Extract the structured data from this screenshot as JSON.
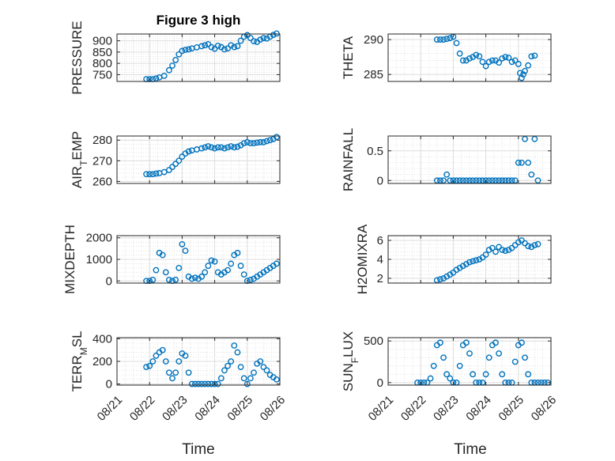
{
  "figure": {
    "title": "Figure 3 high",
    "xlabel": "Time",
    "marker_color": "#0072BD",
    "grid_color": "#dcdcdc",
    "axis_color": "#262626"
  },
  "chart_data": [
    {
      "id": "pressure",
      "type": "scatter",
      "title": "Figure 3 high",
      "ylabel": "PRESSURE",
      "ylim": [
        720,
        930
      ],
      "yticks": [
        750,
        800,
        850,
        900
      ],
      "yticklabels": [
        "750",
        "800",
        "850",
        "900"
      ],
      "xticklabels": [],
      "xlim": [
        0,
        5
      ],
      "x": [
        0.9,
        1.0,
        1.1,
        1.2,
        1.3,
        1.45,
        1.6,
        1.7,
        1.8,
        1.9,
        2.0,
        2.1,
        2.2,
        2.3,
        2.45,
        2.6,
        2.7,
        2.8,
        2.9,
        3.0,
        3.1,
        3.2,
        3.3,
        3.4,
        3.5,
        3.6,
        3.7,
        3.8,
        3.9,
        4.0,
        4.1,
        4.2,
        4.3,
        4.4,
        4.5,
        4.6,
        4.7,
        4.8,
        4.9
      ],
      "y": [
        730,
        730,
        730,
        733,
        738,
        745,
        770,
        790,
        815,
        840,
        855,
        860,
        862,
        866,
        871,
        876,
        880,
        885,
        872,
        865,
        878,
        872,
        862,
        866,
        880,
        872,
        876,
        900,
        918,
        925,
        912,
        898,
        895,
        905,
        912,
        910,
        918,
        926,
        932
      ]
    },
    {
      "id": "theta",
      "type": "scatter",
      "title": "",
      "ylabel": "THETA",
      "ylim": [
        284,
        290.8
      ],
      "yticks": [
        285,
        290
      ],
      "yticklabels": [
        "285",
        "290"
      ],
      "xticklabels": [],
      "xlim": [
        0,
        5
      ],
      "x": [
        1.5,
        1.6,
        1.7,
        1.8,
        1.9,
        2.0,
        2.1,
        2.2,
        2.3,
        2.4,
        2.5,
        2.6,
        2.7,
        2.8,
        2.9,
        3.0,
        3.1,
        3.2,
        3.3,
        3.4,
        3.5,
        3.6,
        3.7,
        3.8,
        3.9,
        4.0,
        4.05,
        4.1,
        4.15,
        4.2,
        4.3,
        4.4,
        4.5
      ],
      "y": [
        290,
        290,
        290,
        290.1,
        290.2,
        290.4,
        289.5,
        288,
        287,
        287,
        287.3,
        287.5,
        287.8,
        287.6,
        286.8,
        286.2,
        286.8,
        287,
        287,
        286.7,
        287.3,
        287.5,
        287.4,
        286.8,
        287,
        286.5,
        285.2,
        284.5,
        285,
        285.5,
        286.3,
        287.6,
        287.7
      ]
    },
    {
      "id": "air_temp",
      "type": "scatter",
      "title": "",
      "ylabel": "AIR_TEMP",
      "ylim": [
        259,
        282
      ],
      "yticks": [
        260,
        270,
        280
      ],
      "yticklabels": [
        "260",
        "270",
        "280"
      ],
      "xticklabels": [],
      "xlim": [
        0,
        5
      ],
      "x": [
        0.9,
        1.0,
        1.1,
        1.2,
        1.3,
        1.45,
        1.6,
        1.7,
        1.8,
        1.9,
        2.0,
        2.1,
        2.2,
        2.3,
        2.45,
        2.6,
        2.7,
        2.8,
        2.9,
        3.0,
        3.1,
        3.2,
        3.3,
        3.4,
        3.5,
        3.6,
        3.7,
        3.8,
        3.9,
        4.0,
        4.1,
        4.2,
        4.3,
        4.4,
        4.5,
        4.6,
        4.7,
        4.8,
        4.9
      ],
      "y": [
        263.5,
        263.5,
        263.5,
        263.8,
        264,
        264.5,
        265.5,
        267,
        268.5,
        270,
        272,
        273.5,
        274.5,
        275,
        275.5,
        276,
        276.5,
        277,
        276.5,
        276,
        276.5,
        276.5,
        276,
        276.5,
        277,
        276.5,
        276.8,
        277.5,
        278.5,
        279,
        278.5,
        278.5,
        278.8,
        279,
        279,
        279.5,
        280,
        280.5,
        281.5
      ]
    },
    {
      "id": "rainfall",
      "type": "scatter",
      "title": "",
      "ylabel": "RAINFALL",
      "ylim": [
        -0.05,
        0.75
      ],
      "yticks": [
        0,
        0.5
      ],
      "yticklabels": [
        "0",
        "0.5"
      ],
      "xticklabels": [],
      "xlim": [
        0,
        5
      ],
      "x": [
        1.5,
        1.6,
        1.7,
        1.8,
        1.9,
        2.0,
        2.1,
        2.2,
        2.3,
        2.4,
        2.5,
        2.6,
        2.7,
        2.8,
        2.9,
        3.0,
        3.1,
        3.2,
        3.3,
        3.4,
        3.5,
        3.6,
        3.7,
        3.8,
        3.9,
        4.0,
        4.1,
        4.2,
        4.3,
        4.4,
        4.5,
        4.6
      ],
      "y": [
        0,
        0,
        0,
        0.1,
        0,
        0,
        0,
        0,
        0,
        0,
        0,
        0,
        0,
        0,
        0,
        0,
        0,
        0,
        0,
        0,
        0,
        0,
        0,
        0,
        0,
        0.3,
        0.3,
        0.7,
        0.3,
        0.1,
        0.7,
        0
      ]
    },
    {
      "id": "mixdepth",
      "type": "scatter",
      "title": "",
      "ylabel": "MIXDEPTH",
      "ylim": [
        -100,
        2100
      ],
      "yticks": [
        0,
        1000,
        2000
      ],
      "yticklabels": [
        "0",
        "1000",
        "2000"
      ],
      "xticklabels": [],
      "xlim": [
        0,
        5
      ],
      "x": [
        0.9,
        1.0,
        1.1,
        1.2,
        1.3,
        1.4,
        1.5,
        1.6,
        1.7,
        1.8,
        1.9,
        2.0,
        2.1,
        2.2,
        2.3,
        2.4,
        2.5,
        2.6,
        2.7,
        2.8,
        2.9,
        3.0,
        3.1,
        3.2,
        3.3,
        3.4,
        3.5,
        3.6,
        3.7,
        3.8,
        3.9,
        4.0,
        4.1,
        4.2,
        4.3,
        4.4,
        4.5,
        4.6,
        4.7,
        4.8,
        4.9
      ],
      "y": [
        0,
        0,
        50,
        500,
        1300,
        1200,
        400,
        50,
        0,
        50,
        600,
        1700,
        1400,
        200,
        100,
        150,
        100,
        200,
        400,
        700,
        950,
        900,
        400,
        300,
        400,
        500,
        800,
        1200,
        1300,
        700,
        300,
        0,
        50,
        100,
        200,
        300,
        400,
        500,
        600,
        700,
        800
      ]
    },
    {
      "id": "h2omixra",
      "type": "scatter",
      "title": "",
      "ylabel": "H2OMIXRA",
      "ylim": [
        1.5,
        6.5
      ],
      "yticks": [
        2,
        4,
        6
      ],
      "yticklabels": [
        "2",
        "4",
        "6"
      ],
      "xticklabels": [],
      "xlim": [
        0,
        5
      ],
      "x": [
        1.5,
        1.6,
        1.7,
        1.8,
        1.9,
        2.0,
        2.1,
        2.2,
        2.3,
        2.4,
        2.5,
        2.6,
        2.7,
        2.8,
        2.9,
        3.0,
        3.1,
        3.2,
        3.3,
        3.4,
        3.5,
        3.6,
        3.7,
        3.8,
        3.9,
        4.0,
        4.1,
        4.2,
        4.3,
        4.4,
        4.5,
        4.6
      ],
      "y": [
        1.8,
        1.9,
        2.0,
        2.2,
        2.4,
        2.6,
        2.9,
        3.1,
        3.3,
        3.5,
        3.7,
        3.8,
        3.9,
        4.0,
        4.2,
        4.5,
        5.0,
        5.2,
        4.8,
        5.3,
        5.0,
        4.9,
        5.0,
        5.2,
        5.5,
        5.8,
        6.0,
        5.7,
        5.4,
        5.3,
        5.5,
        5.6
      ]
    },
    {
      "id": "terr_msl",
      "type": "scatter",
      "title": "",
      "ylabel": "TERR_MSL",
      "ylim": [
        -10,
        410
      ],
      "yticks": [
        0,
        200,
        400
      ],
      "yticklabels": [
        "0",
        "200",
        "400"
      ],
      "xticks": [
        0,
        1,
        2,
        3,
        4,
        5
      ],
      "xticklabels": [
        "08/21",
        "08/22",
        "08/23",
        "08/24",
        "08/25",
        "08/26"
      ],
      "xlim": [
        0,
        5
      ],
      "x": [
        0.9,
        1.0,
        1.1,
        1.2,
        1.3,
        1.4,
        1.5,
        1.6,
        1.7,
        1.8,
        1.9,
        2.0,
        2.1,
        2.2,
        2.3,
        2.4,
        2.5,
        2.6,
        2.7,
        2.8,
        2.9,
        3.0,
        3.1,
        3.2,
        3.3,
        3.4,
        3.5,
        3.6,
        3.7,
        3.8,
        3.9,
        4.0,
        4.1,
        4.2,
        4.3,
        4.4,
        4.5,
        4.6,
        4.7,
        4.8,
        4.9
      ],
      "y": [
        150,
        160,
        200,
        250,
        280,
        300,
        200,
        100,
        50,
        100,
        200,
        270,
        250,
        100,
        0,
        0,
        0,
        0,
        0,
        0,
        0,
        0,
        0,
        50,
        120,
        160,
        200,
        340,
        280,
        150,
        50,
        0,
        50,
        100,
        180,
        200,
        150,
        120,
        80,
        60,
        40
      ]
    },
    {
      "id": "sun_flux",
      "type": "scatter",
      "title": "",
      "ylabel": "SUN_FLUX",
      "ylim": [
        -30,
        540
      ],
      "yticks": [
        0,
        500
      ],
      "yticklabels": [
        "0",
        "500"
      ],
      "xticks": [
        0,
        1,
        2,
        3,
        4,
        5
      ],
      "xticklabels": [
        "08/21",
        "08/22",
        "08/23",
        "08/24",
        "08/25",
        "08/26"
      ],
      "xlim": [
        0,
        5
      ],
      "x": [
        0.9,
        1.0,
        1.1,
        1.2,
        1.3,
        1.4,
        1.5,
        1.6,
        1.7,
        1.8,
        1.9,
        2.0,
        2.1,
        2.2,
        2.3,
        2.4,
        2.5,
        2.6,
        2.7,
        2.8,
        2.9,
        3.0,
        3.1,
        3.2,
        3.3,
        3.4,
        3.5,
        3.6,
        3.7,
        3.8,
        3.9,
        4.0,
        4.1,
        4.2,
        4.3,
        4.4,
        4.5,
        4.6,
        4.7,
        4.8,
        4.9
      ],
      "y": [
        0,
        0,
        0,
        0,
        50,
        200,
        450,
        480,
        300,
        100,
        50,
        0,
        0,
        200,
        450,
        480,
        350,
        100,
        0,
        0,
        0,
        100,
        300,
        450,
        480,
        350,
        100,
        0,
        0,
        0,
        250,
        450,
        480,
        300,
        100,
        0,
        0,
        0,
        0,
        0,
        0
      ]
    }
  ]
}
